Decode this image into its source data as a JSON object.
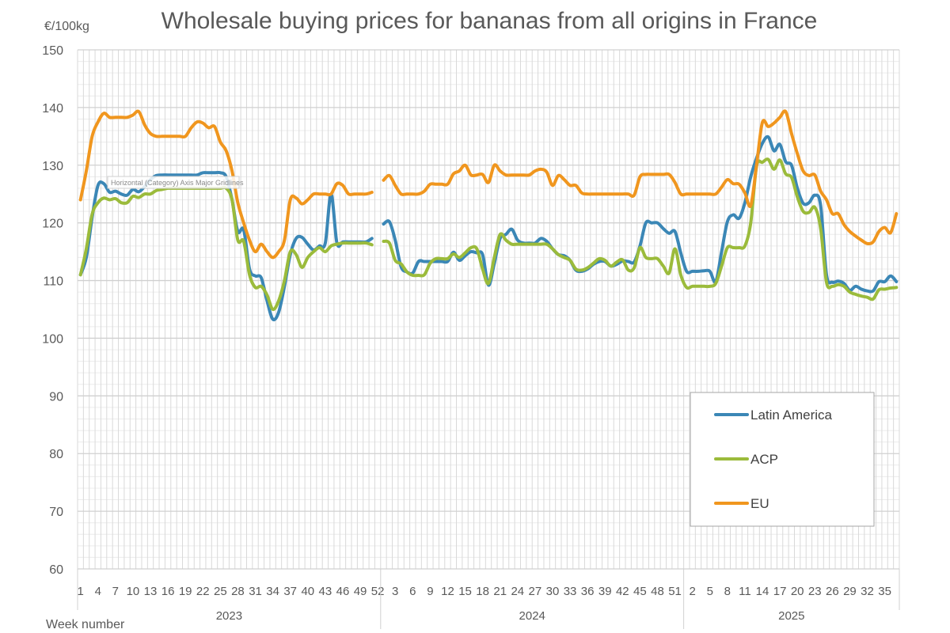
{
  "chart_data": {
    "type": "line",
    "title": "Wholesale buying prices for bananas from all origins in France",
    "ylabel": "€/100kg",
    "xlabel": "Week number",
    "ylim": [
      60,
      150
    ],
    "y_ticks": [
      60,
      70,
      80,
      90,
      100,
      110,
      120,
      130,
      140,
      150
    ],
    "grid": true,
    "legend_position": "bottom-right",
    "years": [
      {
        "label": "2023",
        "weeks": 52,
        "tick_labels": [
          1,
          4,
          7,
          10,
          13,
          16,
          19,
          22,
          25,
          28,
          31,
          34,
          37,
          40,
          43,
          46,
          49,
          52
        ]
      },
      {
        "label": "2024",
        "weeks": 52,
        "tick_labels": [
          3,
          6,
          9,
          12,
          15,
          18,
          21,
          24,
          27,
          30,
          33,
          36,
          39,
          42,
          45,
          48,
          51
        ]
      },
      {
        "label": "2025",
        "weeks": 37,
        "tick_labels": [
          2,
          5,
          8,
          11,
          14,
          17,
          20,
          23,
          26,
          29,
          32,
          35
        ]
      }
    ],
    "series": [
      {
        "name": "Latin America",
        "color": "#3b87b6",
        "values": [
          [
            111,
            114,
            121,
            126.5,
            126.8,
            125.3,
            125.5,
            125,
            124.8,
            125.8,
            125.4,
            126.3,
            127.5,
            128.2,
            128.3,
            128.3,
            128.3,
            128.3,
            128.3,
            128.3,
            128.3,
            128.7,
            128.7,
            128.7,
            128.7,
            128,
            124,
            118.5,
            118.8,
            112,
            110.8,
            110.5,
            106.5,
            103.3,
            104.5,
            109,
            114.5,
            117.3,
            117.5,
            116.3,
            115.3,
            116,
            116.5,
            125,
            116.5,
            116.7,
            116.7,
            116.7,
            116.7,
            116.7,
            117.3,
            null
          ],
          [
            119.8,
            120.2,
            117,
            112.4,
            111.5,
            111.3,
            113.3,
            113.3,
            113.3,
            113.3,
            113.3,
            113.3,
            114.9,
            113.5,
            114.3,
            115,
            114.8,
            114.5,
            109.2,
            113,
            117.3,
            118,
            118.9,
            117,
            116.5,
            116.5,
            116.5,
            117.3,
            116.8,
            115.5,
            114.5,
            114.3,
            113.5,
            111.8,
            111.6,
            112,
            112.8,
            113.3,
            113.3,
            112.5,
            112.8,
            113.4,
            113.3,
            113.2,
            116,
            120,
            120,
            120,
            119,
            118.2,
            118.5,
            114.8
          ],
          [
            111.6,
            111.6,
            111.6,
            111.7,
            111.6,
            109.8,
            115,
            120.2,
            121.4,
            120.8,
            123.5,
            128,
            131.2,
            133.8,
            134.9,
            132.5,
            133.6,
            130.6,
            130,
            126,
            123.4,
            123.5,
            124.8,
            123,
            111,
            109.7,
            109.9,
            109.5,
            108.3,
            109,
            108.5,
            108.2,
            108.2,
            109.8,
            109.8,
            110.8,
            109.8
          ]
        ]
      },
      {
        "name": "ACP",
        "color": "#9bbb3b",
        "values": [
          [
            111,
            115.5,
            121.5,
            123.5,
            124.3,
            124,
            124.2,
            123.5,
            123.5,
            124.6,
            124.4,
            125,
            125,
            125.6,
            125.8,
            126,
            126,
            126,
            126,
            126,
            126,
            126,
            126,
            126,
            126,
            126,
            124,
            117,
            116.8,
            111,
            108.8,
            109,
            107.5,
            105,
            106.5,
            110,
            115,
            114.5,
            112.3,
            114,
            115,
            115.7,
            115,
            116,
            116.3,
            116.5,
            116.5,
            116.5,
            116.5,
            116.5,
            116.2,
            null
          ],
          [
            116.8,
            116.5,
            113.5,
            112.9,
            111.5,
            110.9,
            110.9,
            111,
            113,
            113.8,
            113.8,
            113.8,
            114.6,
            114,
            114.8,
            115.7,
            115.5,
            112,
            109.5,
            114,
            118,
            117,
            116.3,
            116.3,
            116.3,
            116.3,
            116.3,
            116.3,
            116.3,
            115.5,
            114.5,
            114,
            113.5,
            112,
            111.8,
            112.2,
            113,
            113.8,
            113.5,
            112.5,
            113.2,
            113.6,
            111.8,
            112.2,
            115.7,
            114,
            113.8,
            113.8,
            112.5,
            111.3,
            115.5,
            111
          ],
          [
            108.8,
            109,
            109,
            109,
            109,
            109.5,
            112.5,
            115.7,
            115.7,
            115.7,
            116,
            120,
            129.8,
            130.5,
            131,
            129.3,
            130.9,
            128.5,
            127.9,
            124.5,
            122,
            121.8,
            122.7,
            119,
            109.7,
            109,
            109.3,
            109,
            108,
            107.6,
            107.3,
            107.1,
            106.8,
            108.4,
            108.5,
            108.7,
            108.8
          ]
        ]
      },
      {
        "name": "EU",
        "color": "#f0961e",
        "values": [
          [
            124,
            129,
            135,
            137.5,
            139,
            138.3,
            138.3,
            138.3,
            138.3,
            138.7,
            139.3,
            137,
            135.5,
            135,
            135,
            135,
            135,
            135,
            135,
            136.5,
            137.5,
            137.3,
            136.5,
            136.7,
            134,
            132.5,
            129,
            123.5,
            120,
            117,
            115,
            116.3,
            115,
            114,
            115,
            117,
            124,
            124.3,
            123.3,
            124,
            125,
            125,
            125,
            125,
            126.8,
            126.5,
            125,
            125,
            125,
            125,
            125.3,
            null
          ],
          [
            127.4,
            128.2,
            126.5,
            125,
            125,
            125,
            125,
            125.5,
            126.7,
            126.7,
            126.7,
            126.7,
            128.5,
            129,
            130,
            128.3,
            128.3,
            128.4,
            127,
            130,
            129,
            128.3,
            128.3,
            128.3,
            128.3,
            128.3,
            129,
            129.3,
            128.8,
            126.5,
            128.2,
            127.5,
            126.5,
            126.5,
            125.2,
            125,
            125,
            125,
            125,
            125,
            125,
            125,
            125,
            124.8,
            128,
            128.4,
            128.4,
            128.4,
            128.4,
            128.4,
            127,
            125
          ],
          [
            125,
            125,
            125,
            125,
            125,
            125,
            126.2,
            127.5,
            126.8,
            126.7,
            125.2,
            123,
            130,
            137.4,
            136.7,
            137.3,
            138.3,
            139.3,
            135.5,
            132,
            129,
            128.2,
            128.3,
            125.5,
            124,
            121.6,
            121.6,
            119.7,
            118.5,
            117.7,
            117,
            116.4,
            116.7,
            118.5,
            119.2,
            118.3,
            121.6
          ]
        ]
      }
    ]
  },
  "tooltip": "Horizontal (Category) Axis Major Gridlines"
}
